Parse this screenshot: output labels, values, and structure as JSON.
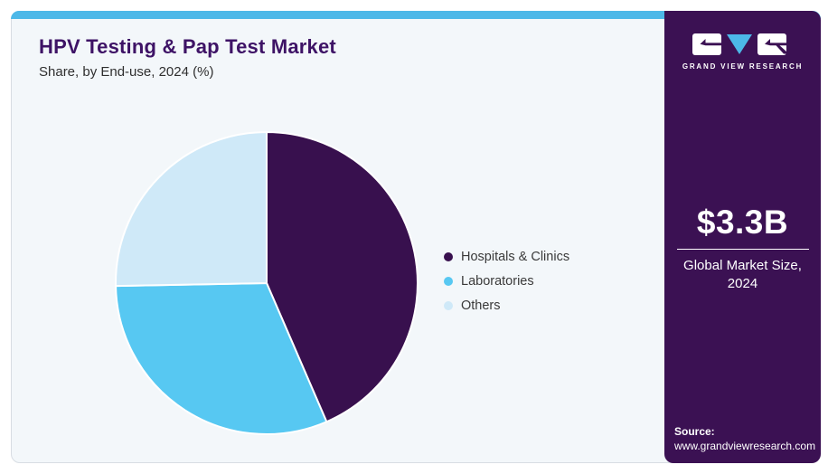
{
  "header": {
    "title": "HPV Testing & Pap Test Market",
    "subtitle": "Share, by End-use, 2024 (%)"
  },
  "chart_data": {
    "type": "pie",
    "title": "HPV Testing & Pap Test Market Share, by End-use, 2024 (%)",
    "categories": [
      "Hospitals & Clinics",
      "Laboratories",
      "Others"
    ],
    "values": [
      43.5,
      31.2,
      25.3
    ],
    "unit": "%",
    "colors": [
      "#38104e",
      "#57c8f2",
      "#cfe9f8"
    ],
    "start_angle_deg": 0,
    "direction": "clockwise",
    "legend_position": "right",
    "data_labels": false
  },
  "sidebar": {
    "logo_text": "GRAND VIEW RESEARCH",
    "market_size_value": "$3.3B",
    "market_size_label_line1": "Global Market Size,",
    "market_size_label_line2": "2024",
    "source_label": "Source:",
    "source_url": "www.grandviewresearch.com"
  },
  "colors": {
    "accent_cyan": "#4cb8e8",
    "sidebar_purple": "#3b1153",
    "title_purple": "#3e1366",
    "card_bg": "#f3f7fa",
    "card_border": "#d8dde3"
  }
}
